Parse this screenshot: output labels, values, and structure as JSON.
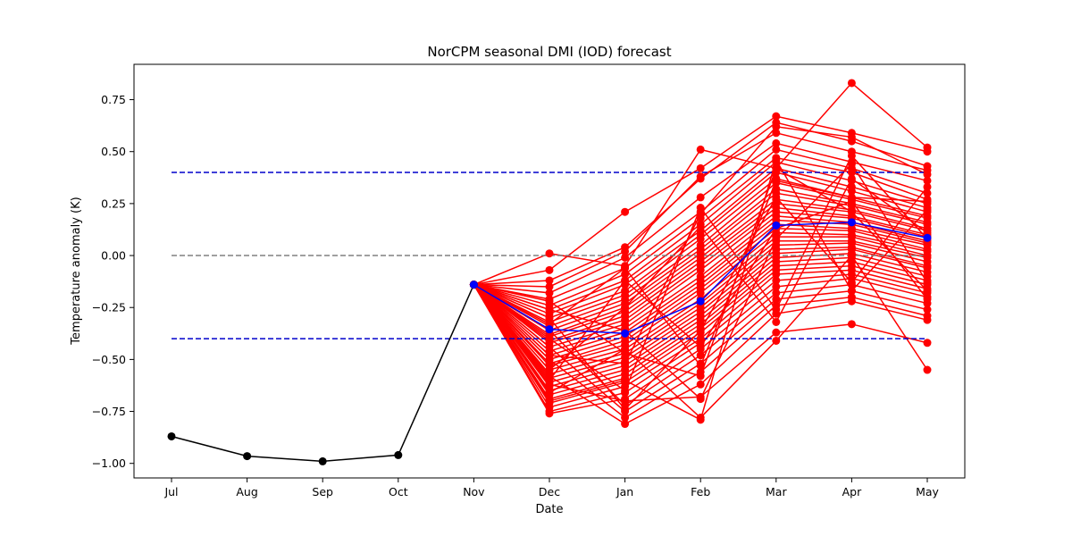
{
  "chart_data": {
    "type": "line",
    "title": "NorCPM seasonal DMI (IOD) forecast",
    "xlabel": "Date",
    "ylabel": "Temperature anomaly (K)",
    "categories": [
      "Jul",
      "Aug",
      "Sep",
      "Oct",
      "Nov",
      "Dec",
      "Jan",
      "Feb",
      "Mar",
      "Apr",
      "May"
    ],
    "ylim": [
      -1.07,
      0.92
    ],
    "yticks": [
      -1.0,
      -0.75,
      -0.5,
      -0.25,
      0.0,
      0.25,
      0.5,
      0.75
    ],
    "ytick_labels": [
      "−1.00",
      "−0.75",
      "−0.50",
      "−0.25",
      "0.00",
      "0.25",
      "0.50",
      "0.75"
    ],
    "grid": false,
    "colors": {
      "members": "#ff0000",
      "observed": "#000000",
      "mean": "#0000ff",
      "threshold": "#0000cc",
      "zero": "#808080"
    },
    "reference_lines": [
      {
        "y": 0.4,
        "style": "dashed",
        "color": "#0000cc"
      },
      {
        "y": 0.0,
        "style": "dashed",
        "color": "#808080"
      },
      {
        "y": -0.4,
        "style": "dashed",
        "color": "#0000cc"
      }
    ],
    "observed": {
      "x": [
        "Jul",
        "Aug",
        "Sep",
        "Oct",
        "Nov"
      ],
      "values": [
        -0.87,
        -0.965,
        -0.99,
        -0.96,
        -0.14
      ]
    },
    "ensemble_mean": {
      "x": [
        "Nov",
        "Dec",
        "Jan",
        "Feb",
        "Mar",
        "Apr",
        "May"
      ],
      "values": [
        -0.14,
        -0.355,
        -0.375,
        -0.22,
        0.145,
        0.16,
        0.085
      ]
    },
    "ensemble_members": [
      [
        -0.14,
        0.01,
        -0.05,
        0.51,
        0.42,
        0.83,
        0.52
      ],
      [
        -0.14,
        -0.07,
        0.21,
        0.42,
        0.67,
        0.59,
        0.5
      ],
      [
        -0.14,
        -0.12,
        0.04,
        0.37,
        0.64,
        0.55,
        0.43
      ],
      [
        -0.14,
        -0.15,
        0.02,
        0.38,
        0.59,
        0.5,
        0.41
      ],
      [
        -0.14,
        -0.18,
        -0.01,
        0.28,
        0.54,
        0.45,
        0.36
      ],
      [
        -0.14,
        -0.21,
        -0.06,
        0.21,
        0.51,
        0.42,
        0.3
      ],
      [
        -0.14,
        -0.24,
        -0.09,
        0.18,
        0.47,
        0.4,
        0.27
      ],
      [
        -0.14,
        -0.26,
        -0.12,
        0.15,
        0.45,
        0.36,
        0.25
      ],
      [
        -0.14,
        -0.28,
        -0.14,
        0.12,
        0.42,
        0.33,
        0.23
      ],
      [
        -0.14,
        -0.3,
        -0.17,
        0.1,
        0.4,
        0.31,
        0.21
      ],
      [
        -0.14,
        -0.32,
        -0.19,
        0.08,
        0.37,
        0.28,
        0.19
      ],
      [
        -0.14,
        -0.34,
        -0.21,
        0.05,
        0.35,
        0.27,
        0.18
      ],
      [
        -0.14,
        -0.36,
        -0.23,
        0.03,
        0.32,
        0.25,
        0.16
      ],
      [
        -0.14,
        -0.38,
        -0.25,
        0.01,
        0.3,
        0.24,
        0.15
      ],
      [
        -0.14,
        -0.39,
        -0.27,
        -0.01,
        0.27,
        0.22,
        0.13
      ],
      [
        -0.14,
        -0.41,
        -0.29,
        -0.03,
        0.25,
        0.21,
        0.12
      ],
      [
        -0.14,
        -0.42,
        -0.31,
        -0.05,
        0.23,
        0.19,
        0.1
      ],
      [
        -0.14,
        -0.44,
        -0.33,
        -0.07,
        0.21,
        0.18,
        0.09
      ],
      [
        -0.14,
        -0.46,
        -0.35,
        -0.1,
        0.19,
        0.16,
        0.07
      ],
      [
        -0.14,
        -0.48,
        -0.37,
        -0.12,
        0.17,
        0.15,
        0.06
      ],
      [
        -0.14,
        -0.5,
        -0.39,
        -0.14,
        0.15,
        0.13,
        0.05
      ],
      [
        -0.14,
        -0.52,
        -0.41,
        -0.16,
        0.13,
        0.12,
        0.03
      ],
      [
        -0.14,
        -0.53,
        -0.43,
        -0.18,
        0.11,
        0.1,
        0.02
      ],
      [
        -0.14,
        -0.55,
        -0.45,
        -0.21,
        0.09,
        0.09,
        0.0
      ],
      [
        -0.14,
        -0.57,
        -0.47,
        -0.23,
        0.07,
        0.07,
        -0.01
      ],
      [
        -0.14,
        -0.59,
        -0.49,
        -0.25,
        0.05,
        0.06,
        -0.03
      ],
      [
        -0.14,
        -0.61,
        -0.51,
        -0.27,
        0.03,
        0.04,
        -0.05
      ],
      [
        -0.14,
        -0.63,
        -0.53,
        -0.29,
        0.01,
        0.03,
        -0.06
      ],
      [
        -0.14,
        -0.65,
        -0.55,
        -0.31,
        -0.01,
        0.01,
        -0.08
      ],
      [
        -0.14,
        -0.67,
        -0.57,
        -0.33,
        -0.03,
        -0.01,
        -0.1
      ],
      [
        -0.14,
        -0.69,
        -0.59,
        -0.35,
        -0.05,
        -0.03,
        -0.12
      ],
      [
        -0.14,
        -0.71,
        -0.61,
        -0.37,
        -0.07,
        -0.05,
        -0.14
      ],
      [
        -0.14,
        -0.73,
        -0.63,
        -0.4,
        -0.09,
        -0.07,
        -0.16
      ],
      [
        -0.14,
        -0.75,
        -0.66,
        -0.42,
        -0.12,
        -0.09,
        -0.18
      ],
      [
        -0.14,
        -0.76,
        -0.69,
        -0.45,
        -0.15,
        -0.11,
        -0.2
      ],
      [
        -0.14,
        -0.36,
        -0.72,
        -0.48,
        -0.18,
        -0.14,
        -0.23
      ],
      [
        -0.14,
        -0.44,
        -0.75,
        -0.52,
        -0.21,
        -0.17,
        -0.26
      ],
      [
        -0.14,
        -0.5,
        -0.78,
        -0.56,
        -0.24,
        -0.2,
        -0.29
      ],
      [
        -0.14,
        -0.58,
        -0.81,
        -0.62,
        -0.28,
        -0.22,
        -0.31
      ],
      [
        -0.14,
        -0.62,
        -0.7,
        -0.68,
        -0.37,
        -0.33,
        -0.42
      ],
      [
        -0.14,
        -0.66,
        -0.45,
        -0.78,
        -0.41,
        0.0,
        -0.55
      ],
      [
        -0.14,
        -0.7,
        -0.6,
        -0.79,
        0.46,
        -0.17,
        0.22
      ],
      [
        -0.14,
        -0.48,
        -0.52,
        0.2,
        0.62,
        0.57,
        0.39
      ],
      [
        -0.14,
        -0.26,
        -0.36,
        -0.69,
        0.08,
        0.44,
        -0.13
      ],
      [
        -0.14,
        -0.33,
        -0.06,
        -0.53,
        0.36,
        0.28,
        0.26
      ],
      [
        -0.14,
        -0.4,
        -0.65,
        0.23,
        -0.26,
        0.48,
        0.08
      ],
      [
        -0.14,
        -0.22,
        -0.47,
        -0.58,
        0.42,
        0.21,
        -0.17
      ],
      [
        -0.14,
        -0.55,
        -0.25,
        0.14,
        -0.32,
        0.37,
        0.11
      ],
      [
        -0.14,
        -0.3,
        -0.74,
        -0.36,
        0.28,
        -0.13,
        0.33
      ],
      [
        -0.14,
        -0.6,
        -0.12,
        -0.44,
        0.13,
        0.26,
        -0.21
      ]
    ]
  }
}
